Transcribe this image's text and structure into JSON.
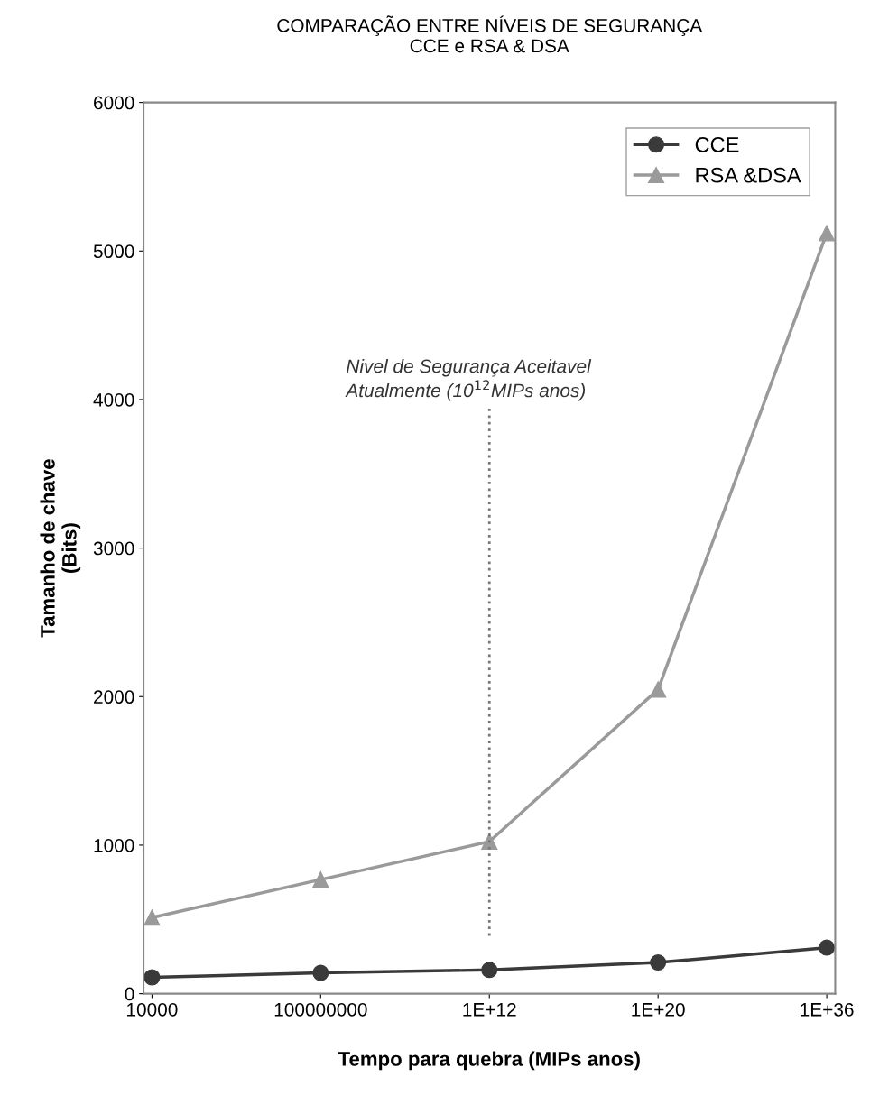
{
  "chart_data": {
    "type": "line",
    "title": "COMPARAÇÃO ENTRE NÍVEIS DE SEGURANÇA\nCCE e RSA & DSA",
    "xlabel": "Tempo para quebra (MIPs anos)",
    "ylabel": "Tamanho de chave\n(Bits)",
    "categories": [
      "10000",
      "100000000",
      "1E+12",
      "1E+20",
      "1E+36"
    ],
    "series": [
      {
        "name": "CCE",
        "color": "#3a3a3a",
        "marker": "circle",
        "values": [
          110,
          140,
          160,
          210,
          310
        ]
      },
      {
        "name": "RSA &DSA",
        "color": "#9a9a9a",
        "marker": "triangle",
        "values": [
          512,
          768,
          1024,
          2048,
          5120
        ]
      }
    ],
    "ylim": [
      0,
      6000
    ],
    "yticks": [
      0,
      1000,
      2000,
      3000,
      4000,
      5000,
      6000
    ],
    "grid": false,
    "legend": "top right",
    "line_style": "solid",
    "ref_lines": [
      {
        "axis": "x",
        "value": "1E+12",
        "label": "Nivel de Segurança Aceitavel\nAtualmente (10$^{12}$MIPs anos)",
        "color": "#777777",
        "line_style": "dotted"
      }
    ]
  }
}
